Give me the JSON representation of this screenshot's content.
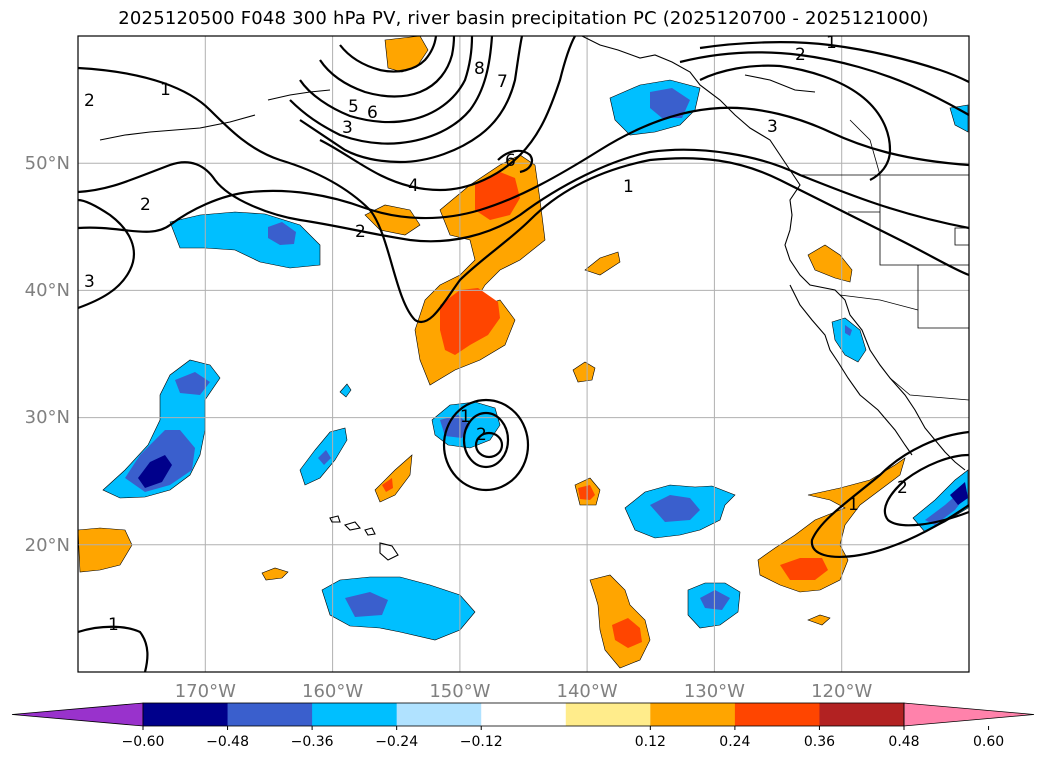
{
  "title": "2025120500 F048 300 hPa PV, river basin precipitation PC (2025120700 - 2025121000)",
  "map": {
    "lat_labels": [
      {
        "text": "50°N",
        "lat": 50
      },
      {
        "text": "40°N",
        "lat": 40
      },
      {
        "text": "30°N",
        "lat": 30
      },
      {
        "text": "20°N",
        "lat": 20
      }
    ],
    "lon_labels": [
      {
        "text": "170°W",
        "lon": -170
      },
      {
        "text": "160°W",
        "lon": -160
      },
      {
        "text": "150°W",
        "lon": -150
      },
      {
        "text": "140°W",
        "lon": -140
      },
      {
        "text": "130°W",
        "lon": -130
      },
      {
        "text": "120°W",
        "lon": -120
      }
    ],
    "extent": {
      "lon_min": -180,
      "lon_max": -110,
      "lat_min": 10,
      "lat_max": 60
    }
  },
  "pv_contour_labels": [
    "1",
    "2",
    "3",
    "4",
    "5",
    "6",
    "7",
    "8"
  ],
  "colorbar": {
    "ticks": [
      "−0.60",
      "−0.48",
      "−0.36",
      "−0.24",
      "−0.12",
      "0.12",
      "0.24",
      "0.36",
      "0.48",
      "0.60"
    ],
    "colors": [
      "#9932cc",
      "#00008b",
      "#3a5fcd",
      "#00bfff",
      "#b0e2ff",
      "#ffffff",
      "#ffec8b",
      "#ffa500",
      "#ff4500",
      "#b22222",
      "#ff82ab"
    ]
  },
  "colors": {
    "pos_low": "#ffa500",
    "pos_mid": "#ff4500",
    "neg_low": "#00bfff",
    "neg_mid": "#3a5fcd",
    "neg_high": "#00008b"
  }
}
